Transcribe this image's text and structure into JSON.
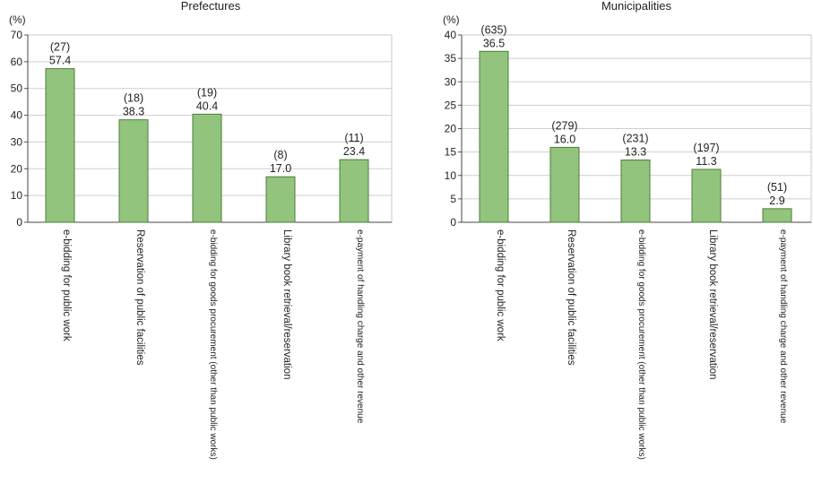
{
  "chart_data": [
    {
      "type": "bar",
      "title": "Prefectures",
      "ylabel": "(%)",
      "ylim": [
        0,
        70
      ],
      "yticks": [
        0,
        10,
        20,
        30,
        40,
        50,
        60,
        70
      ],
      "grid": true,
      "bar_color": "#92c47d",
      "categories": [
        "e-bidding for public work",
        "Reservation of public facilities",
        "e-bidding for goods procurement (other than public works)",
        "Library book retrieval/reservation",
        "e-payment of handling charge and other revenue"
      ],
      "values": [
        57.4,
        38.3,
        40.4,
        17.0,
        23.4
      ],
      "value_labels": [
        "57.4",
        "38.3",
        "40.4",
        "17.0",
        "23.4"
      ],
      "counts": [
        "(27)",
        "(18)",
        "(19)",
        "(8)",
        "(11)"
      ]
    },
    {
      "type": "bar",
      "title": "Municipalities",
      "ylabel": "(%)",
      "ylim": [
        0,
        40
      ],
      "yticks": [
        0,
        5,
        10,
        15,
        20,
        25,
        30,
        35,
        40
      ],
      "grid": true,
      "bar_color": "#92c47d",
      "categories": [
        "e-bidding for public work",
        "Reservation of public facilities",
        "e-bidding for goods procurement (other than public works)",
        "Library book retrieval/reservation",
        "e-payment of handling charge and other revenue"
      ],
      "values": [
        36.5,
        16.0,
        13.3,
        11.3,
        2.9
      ],
      "value_labels": [
        "36.5",
        "16.0",
        "13.3",
        "11.3",
        "2.9"
      ],
      "counts": [
        "(635)",
        "(279)",
        "(231)",
        "(197)",
        "(51)"
      ]
    }
  ]
}
